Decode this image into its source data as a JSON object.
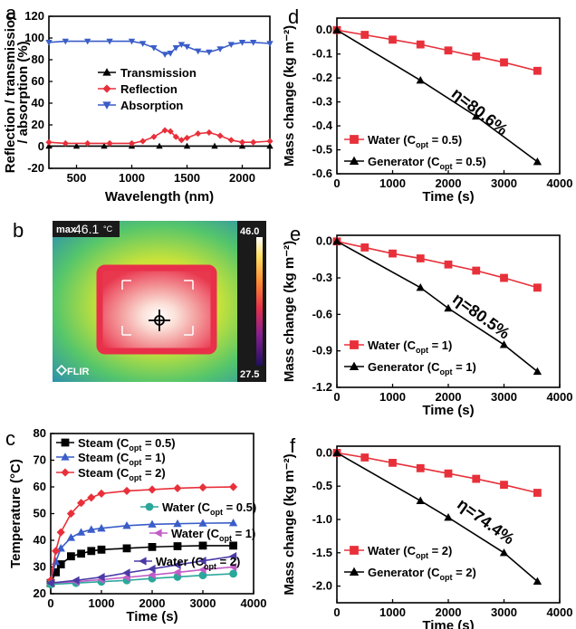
{
  "colors": {
    "black": "#000000",
    "red": "#e8303a",
    "blue": "#3a5dc8",
    "teal": "#2aa79b",
    "magenta": "#c25dc7",
    "purple": "#4a3aa6"
  },
  "panels": {
    "a": {
      "letter": "a"
    },
    "b": {
      "letter": "b",
      "max_label": "max",
      "max_value": "46.1",
      "max_unit": "°C",
      "scale_max": "46.0",
      "scale_min": "27.5",
      "brand": "FLIR"
    },
    "c": {
      "letter": "c"
    },
    "d": {
      "letter": "d",
      "annotation": "η=80.6%"
    },
    "e": {
      "letter": "e",
      "annotation": "η=80.5%"
    },
    "f": {
      "letter": "f",
      "annotation": "η=74.4%"
    }
  },
  "chart_data": [
    {
      "panel": "a",
      "type": "line",
      "xlabel": "Wavelength (nm)",
      "ylabel_lines": [
        "Reflection / transmission",
        "/ absorption (%)"
      ],
      "xlim": [
        250,
        2250
      ],
      "ylim": [
        -20,
        120
      ],
      "xticks": [
        500,
        1000,
        1500,
        2000
      ],
      "yticks": [
        -20,
        0,
        20,
        40,
        60,
        80,
        100,
        120
      ],
      "legend": "center-left",
      "series": [
        {
          "name": "Transmission",
          "color": "#000000",
          "marker": "triangle",
          "x": [
            250,
            500,
            750,
            1000,
            1250,
            1500,
            1750,
            2000,
            2250
          ],
          "y": [
            0.5,
            0.5,
            0.5,
            0.5,
            0.5,
            0.5,
            0.5,
            0.5,
            0.5
          ]
        },
        {
          "name": "Reflection",
          "color": "#e8303a",
          "marker": "diamond",
          "x": [
            250,
            400,
            600,
            800,
            1000,
            1100,
            1200,
            1300,
            1350,
            1400,
            1450,
            1500,
            1600,
            1700,
            1800,
            1900,
            2000,
            2100,
            2250
          ],
          "y": [
            4,
            3,
            3,
            3,
            3,
            5,
            9,
            15,
            14,
            9,
            6,
            8,
            12,
            13,
            10,
            6,
            4,
            4,
            5
          ]
        },
        {
          "name": "Absorption",
          "color": "#3a5dc8",
          "marker": "triangle-down",
          "x": [
            250,
            400,
            600,
            800,
            1000,
            1100,
            1200,
            1300,
            1350,
            1400,
            1450,
            1500,
            1600,
            1700,
            1800,
            1900,
            2000,
            2100,
            2250
          ],
          "y": [
            96,
            97,
            97,
            97,
            97,
            95,
            91,
            85,
            86,
            91,
            94,
            92,
            88,
            87,
            90,
            94,
            96,
            96,
            95
          ]
        }
      ]
    },
    {
      "panel": "c",
      "type": "line",
      "xlabel": "Time (s)",
      "ylabel": "Temperature (°C)",
      "xlim": [
        0,
        4000
      ],
      "ylim": [
        20,
        80
      ],
      "xticks": [
        0,
        1000,
        2000,
        3000,
        4000
      ],
      "yticks": [
        20,
        30,
        40,
        50,
        60,
        70,
        80
      ],
      "series": [
        {
          "name": "Steam",
          "copt": "0.5",
          "color": "#000000",
          "marker": "square",
          "x": [
            0,
            100,
            200,
            400,
            600,
            800,
            1000,
            1500,
            2000,
            2500,
            3000,
            3600
          ],
          "y": [
            24,
            28,
            31,
            34,
            35,
            36,
            36.5,
            37,
            37.5,
            37.8,
            38,
            38
          ]
        },
        {
          "name": "Steam",
          "copt": "1",
          "color": "#3a5dc8",
          "marker": "triangle",
          "x": [
            0,
            100,
            200,
            400,
            600,
            800,
            1000,
            1500,
            2000,
            2500,
            3000,
            3600
          ],
          "y": [
            25,
            32,
            37,
            41,
            43,
            44,
            44.5,
            45.5,
            46,
            46.2,
            46.4,
            46.5
          ]
        },
        {
          "name": "Steam",
          "copt": "2",
          "color": "#e8303a",
          "marker": "diamond",
          "x": [
            0,
            100,
            200,
            400,
            600,
            800,
            1000,
            1500,
            2000,
            2500,
            3000,
            3600
          ],
          "y": [
            25,
            36,
            43,
            50,
            54,
            56,
            57.5,
            58.5,
            59,
            59.5,
            59.8,
            60
          ]
        },
        {
          "name": "Water",
          "copt": "0.5",
          "color": "#2aa79b",
          "marker": "circle",
          "x": [
            0,
            500,
            1000,
            1500,
            2000,
            2500,
            3000,
            3600
          ],
          "y": [
            23.5,
            24,
            24.5,
            25,
            25.7,
            26.3,
            26.9,
            27.5
          ]
        },
        {
          "name": "Water",
          "copt": "1",
          "color": "#c25dc7",
          "marker": "triangle-left",
          "x": [
            0,
            500,
            1000,
            1500,
            2000,
            2500,
            3000,
            3600
          ],
          "y": [
            24,
            24.5,
            25.3,
            26.1,
            27,
            28,
            29,
            30
          ]
        },
        {
          "name": "Water",
          "copt": "2",
          "color": "#4a3aa6",
          "marker": "triangle-left",
          "x": [
            0,
            500,
            1000,
            1500,
            2000,
            2500,
            3000,
            3600
          ],
          "y": [
            24,
            25,
            26.2,
            27.8,
            29.3,
            30.8,
            32.3,
            34
          ]
        }
      ]
    },
    {
      "panel": "d",
      "type": "line",
      "xlabel": "Time (s)",
      "ylabel": "Mass change (kg m⁻²)",
      "xlim": [
        0,
        4000
      ],
      "ylim": [
        -0.6,
        0.05
      ],
      "xticks": [
        0,
        1000,
        2000,
        3000,
        4000
      ],
      "yticks": [
        0.0,
        -0.1,
        -0.2,
        -0.3,
        -0.4,
        -0.5,
        -0.6
      ],
      "ytick_labels": [
        "0.0",
        "-0.1",
        "-0.2",
        "-0.3",
        "-0.4",
        "-0.5",
        "-0.6"
      ],
      "series": [
        {
          "name": "Water",
          "copt": "0.5",
          "color": "#e8303a",
          "marker": "square",
          "x": [
            0,
            500,
            1000,
            1500,
            2000,
            2500,
            3000,
            3600
          ],
          "y": [
            0,
            -0.02,
            -0.04,
            -0.06,
            -0.085,
            -0.11,
            -0.135,
            -0.17
          ]
        },
        {
          "name": "Generator",
          "copt": "0.5",
          "color": "#000000",
          "marker": "triangle",
          "x": [
            0,
            1500,
            2500,
            3600
          ],
          "y": [
            0,
            -0.21,
            -0.36,
            -0.55
          ]
        }
      ]
    },
    {
      "panel": "e",
      "type": "line",
      "xlabel": "Time (s)",
      "ylabel": "Mass change (kg m⁻²)",
      "xlim": [
        0,
        4000
      ],
      "ylim": [
        -1.2,
        0.05
      ],
      "xticks": [
        0,
        1000,
        2000,
        3000,
        4000
      ],
      "yticks": [
        0.0,
        -0.3,
        -0.6,
        -0.9,
        -1.2
      ],
      "ytick_labels": [
        "0.0",
        "-0.3",
        "-0.6",
        "-0.9",
        "-1.2"
      ],
      "series": [
        {
          "name": "Water",
          "copt": "1",
          "color": "#e8303a",
          "marker": "square",
          "x": [
            0,
            500,
            1000,
            1500,
            2000,
            2500,
            3000,
            3600
          ],
          "y": [
            0,
            -0.05,
            -0.1,
            -0.14,
            -0.19,
            -0.24,
            -0.3,
            -0.38
          ]
        },
        {
          "name": "Generator",
          "copt": "1",
          "color": "#000000",
          "marker": "triangle",
          "x": [
            0,
            1500,
            2000,
            3000,
            3600
          ],
          "y": [
            0,
            -0.38,
            -0.55,
            -0.85,
            -1.07
          ]
        }
      ]
    },
    {
      "panel": "f",
      "type": "line",
      "xlabel": "Time (s)",
      "ylabel": "Mass change (kg m⁻²)",
      "xlim": [
        0,
        4000
      ],
      "ylim": [
        -2.25,
        0.1
      ],
      "xticks": [
        0,
        1000,
        2000,
        3000,
        4000
      ],
      "yticks": [
        0.0,
        -0.5,
        -1.0,
        -1.5,
        -2.0
      ],
      "ytick_labels": [
        "0.0",
        "-0.5",
        "-1.0",
        "-1.5",
        "-2.0"
      ],
      "series": [
        {
          "name": "Water",
          "copt": "2",
          "color": "#e8303a",
          "marker": "square",
          "x": [
            0,
            500,
            1000,
            1500,
            2000,
            2500,
            3000,
            3600
          ],
          "y": [
            0,
            -0.07,
            -0.15,
            -0.23,
            -0.31,
            -0.39,
            -0.48,
            -0.6
          ]
        },
        {
          "name": "Generator",
          "copt": "2",
          "color": "#000000",
          "marker": "triangle",
          "x": [
            0,
            1500,
            2000,
            3000,
            3600
          ],
          "y": [
            0,
            -0.72,
            -0.97,
            -1.5,
            -1.93
          ]
        }
      ]
    }
  ]
}
